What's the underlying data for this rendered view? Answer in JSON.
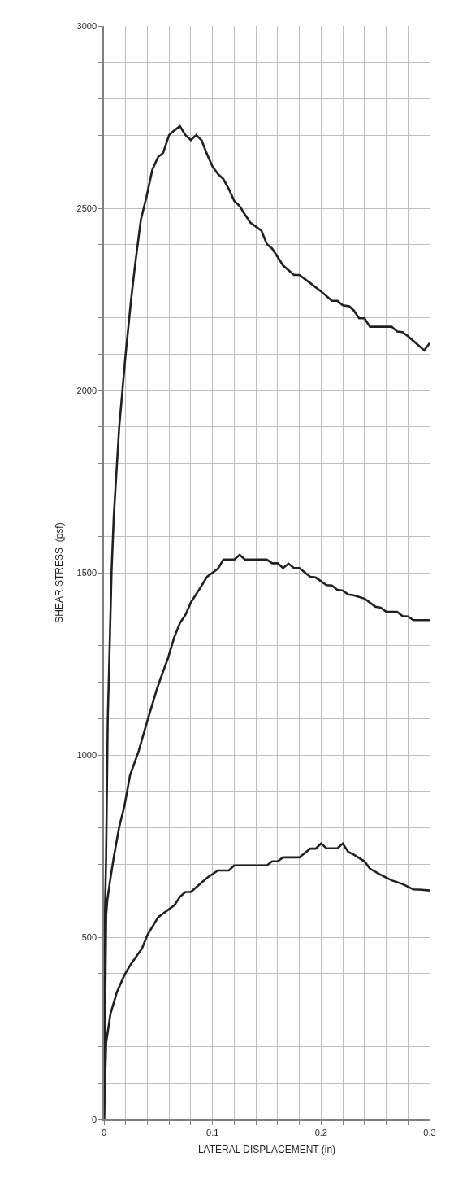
{
  "chart_data": {
    "type": "line",
    "xlabel": "LATERAL DISPLACEMENT (in)",
    "ylabel": "SHEAR STRESS  (psf)",
    "xlim": [
      0,
      0.3
    ],
    "ylim": [
      0,
      3000
    ],
    "xticks": [
      0,
      {
        "value": 0.02,
        "label": null
      },
      {
        "value": 0.04,
        "label": null
      },
      {
        "value": 0.06,
        "label": null
      },
      {
        "value": 0.08,
        "label": null
      },
      0.1,
      {
        "value": 0.12,
        "label": null
      },
      {
        "value": 0.14,
        "label": null
      },
      {
        "value": 0.16,
        "label": null
      },
      {
        "value": 0.18,
        "label": null
      },
      0.2,
      {
        "value": 0.22,
        "label": null
      },
      {
        "value": 0.24,
        "label": null
      },
      {
        "value": 0.26,
        "label": null
      },
      {
        "value": 0.28,
        "label": null
      },
      0.3
    ],
    "yticks": [
      0,
      {
        "value": 100,
        "label": null
      },
      {
        "value": 200,
        "label": null
      },
      {
        "value": 300,
        "label": null
      },
      {
        "value": 400,
        "label": null
      },
      500,
      {
        "value": 600,
        "label": null
      },
      {
        "value": 700,
        "label": null
      },
      {
        "value": 800,
        "label": null
      },
      {
        "value": 900,
        "label": null
      },
      1000,
      {
        "value": 1100,
        "label": null
      },
      {
        "value": 1200,
        "label": null
      },
      {
        "value": 1300,
        "label": null
      },
      {
        "value": 1400,
        "label": null
      },
      1500,
      {
        "value": 1600,
        "label": null
      },
      {
        "value": 1700,
        "label": null
      },
      {
        "value": 1800,
        "label": null
      },
      {
        "value": 1900,
        "label": null
      },
      2000,
      {
        "value": 2100,
        "label": null
      },
      {
        "value": 2200,
        "label": null
      },
      {
        "value": 2300,
        "label": null
      },
      {
        "value": 2400,
        "label": null
      },
      2500,
      {
        "value": 2600,
        "label": null
      },
      {
        "value": 2700,
        "label": null
      },
      {
        "value": 2800,
        "label": null
      },
      {
        "value": 2900,
        "label": null
      },
      3000
    ],
    "grid": true,
    "marker": "none",
    "line_style": "solid",
    "series": [
      {
        "color": "#231f20",
        "x": [
          0,
          0.001,
          0.002,
          0.0035,
          0.0055,
          0.007,
          0.009,
          0.014,
          0.017,
          0.02,
          0.025,
          0.029,
          0.034,
          0.039,
          0.0446,
          0.05,
          0.0545,
          0.06,
          0.065,
          0.07,
          0.075,
          0.08,
          0.085,
          0.09,
          0.095,
          0.1,
          0.105,
          0.11,
          0.115,
          0.12,
          0.125,
          0.13,
          0.135,
          0.145,
          0.15,
          0.155,
          0.162,
          0.165,
          0.175,
          0.18,
          0.19,
          0.2,
          0.21,
          0.215,
          0.22,
          0.226,
          0.23,
          0.235,
          0.24,
          0.245,
          0.265,
          0.27,
          0.275,
          0.28,
          0.295,
          0.3
        ],
        "values": [
          0,
          577,
          727,
          1101,
          1326,
          1504,
          1653,
          1899,
          2000,
          2101,
          2250,
          2353,
          2469,
          2529,
          2606,
          2641,
          2652,
          2701,
          2714,
          2725,
          2701,
          2687,
          2701,
          2686,
          2648,
          2615,
          2594,
          2580,
          2553,
          2520,
          2506,
          2482,
          2460,
          2439,
          2402,
          2389,
          2357,
          2343,
          2317,
          2317,
          2295,
          2272,
          2246,
          2246,
          2234,
          2231,
          2220,
          2198,
          2198,
          2175,
          2175,
          2162,
          2160,
          2149,
          2110,
          2130
        ]
      },
      {
        "color": "#231f20",
        "x": [
          0,
          0.002,
          0.003,
          0.0055,
          0.009,
          0.014,
          0.019,
          0.024,
          0.032,
          0.04,
          0.049,
          0.054,
          0.059,
          0.065,
          0.07,
          0.075,
          0.08,
          0.088,
          0.095,
          0.1,
          0.105,
          0.11,
          0.12,
          0.125,
          0.13,
          0.15,
          0.155,
          0.16,
          0.165,
          0.17,
          0.175,
          0.18,
          0.19,
          0.195,
          0.205,
          0.21,
          0.215,
          0.22,
          0.225,
          0.23,
          0.24,
          0.25,
          0.255,
          0.26,
          0.27,
          0.275,
          0.28,
          0.285,
          0.3
        ],
        "values": [
          0,
          560,
          600,
          652,
          719,
          802,
          862,
          944,
          1011,
          1094,
          1183,
          1225,
          1266,
          1325,
          1362,
          1384,
          1418,
          1455,
          1489,
          1500,
          1511,
          1536,
          1536,
          1549,
          1536,
          1536,
          1526,
          1526,
          1513,
          1525,
          1513,
          1513,
          1489,
          1487,
          1466,
          1465,
          1453,
          1451,
          1440,
          1438,
          1429,
          1407,
          1404,
          1393,
          1393,
          1381,
          1380,
          1370,
          1370
        ]
      },
      {
        "color": "#231f20",
        "x": [
          0,
          0.002,
          0.006,
          0.012,
          0.019,
          0.025,
          0.035,
          0.04,
          0.05,
          0.065,
          0.07,
          0.075,
          0.08,
          0.095,
          0.105,
          0.115,
          0.12,
          0.15,
          0.155,
          0.16,
          0.165,
          0.18,
          0.19,
          0.195,
          0.2,
          0.205,
          0.215,
          0.22,
          0.225,
          0.23,
          0.24,
          0.245,
          0.255,
          0.265,
          0.275,
          0.285,
          0.293,
          0.3
        ],
        "values": [
          0,
          210,
          290,
          350,
          397,
          427,
          469,
          506,
          555,
          588,
          611,
          624,
          624,
          663,
          683,
          683,
          697,
          697,
          708,
          708,
          719,
          719,
          743,
          743,
          757,
          744,
          744,
          757,
          734,
          727,
          708,
          688,
          671,
          656,
          646,
          631,
          630,
          628
        ]
      }
    ]
  }
}
